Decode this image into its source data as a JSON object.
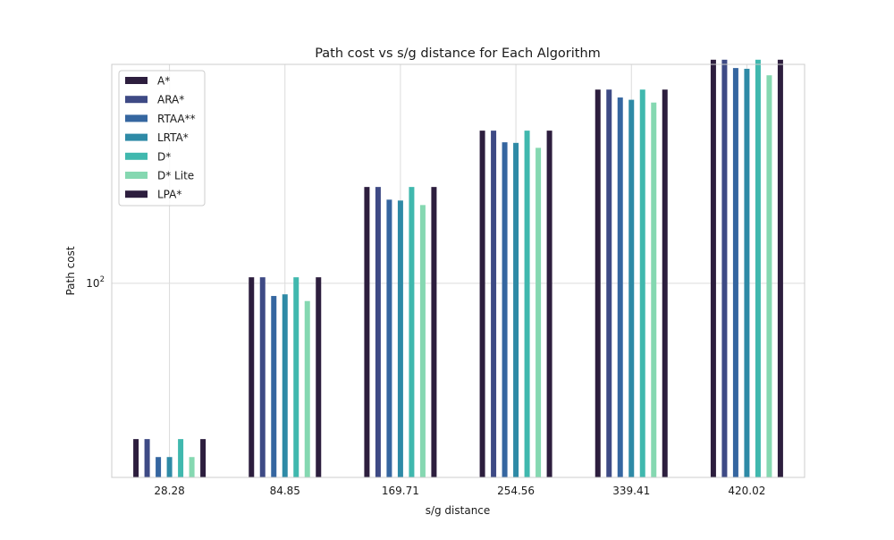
{
  "chart_data": {
    "type": "bar",
    "title": "Path cost vs s/g distance for Each Algorithm",
    "xlabel": "s/g distance",
    "ylabel": "Path cost",
    "yscale": "log",
    "ylim": [
      28,
      420
    ],
    "yticks": [
      {
        "value": 100,
        "base": "10",
        "exp": "2"
      }
    ],
    "categories": [
      "28.28",
      "84.85",
      "169.71",
      "254.56",
      "339.41",
      "420.02"
    ],
    "series": [
      {
        "name": "A*",
        "color": "#2d1e3e",
        "values": [
          36,
          104,
          188,
          272,
          356,
          433
        ]
      },
      {
        "name": "ARA*",
        "color": "#3e4a85",
        "values": [
          36,
          104,
          188,
          272,
          356,
          433
        ]
      },
      {
        "name": "RTAA**",
        "color": "#3566a0",
        "values": [
          32,
          92,
          173,
          252,
          338,
          410
        ]
      },
      {
        "name": "LRTA*",
        "color": "#2e8aa6",
        "values": [
          32,
          93,
          172,
          251,
          333,
          408
        ]
      },
      {
        "name": "D*",
        "color": "#40b8ae",
        "values": [
          36,
          104,
          188,
          272,
          356,
          433
        ]
      },
      {
        "name": "D* Lite",
        "color": "#85d8b1",
        "values": [
          32,
          89,
          167,
          243,
          327,
          391
        ]
      },
      {
        "name": "LPA*",
        "color": "#2d1e3e",
        "values": [
          36,
          104,
          188,
          272,
          356,
          433
        ]
      }
    ],
    "grid": true,
    "legend": "top-left"
  }
}
